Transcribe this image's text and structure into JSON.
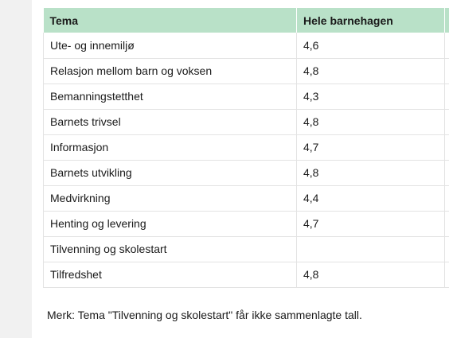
{
  "table": {
    "headers": [
      "Tema",
      "Hele barnehagen",
      ""
    ],
    "rows": [
      {
        "tema": "Ute- og innemiljø",
        "score": "4,6"
      },
      {
        "tema": "Relasjon mellom barn og voksen",
        "score": "4,8"
      },
      {
        "tema": "Bemanningstetthet",
        "score": "4,3"
      },
      {
        "tema": "Barnets trivsel",
        "score": "4,8"
      },
      {
        "tema": "Informasjon",
        "score": "4,7"
      },
      {
        "tema": "Barnets utvikling",
        "score": "4,8"
      },
      {
        "tema": "Medvirkning",
        "score": "4,4"
      },
      {
        "tema": "Henting og levering",
        "score": "4,7"
      },
      {
        "tema": "Tilvenning og skolestart",
        "score": ""
      },
      {
        "tema": "Tilfredshet",
        "score": "4,8"
      }
    ]
  },
  "note": "Merk: Tema \"Tilvenning og skolestart\" får ikke sammenlagte tall.",
  "colors": {
    "header_background": "#b9e1c8",
    "border": "#e3e3e3"
  }
}
